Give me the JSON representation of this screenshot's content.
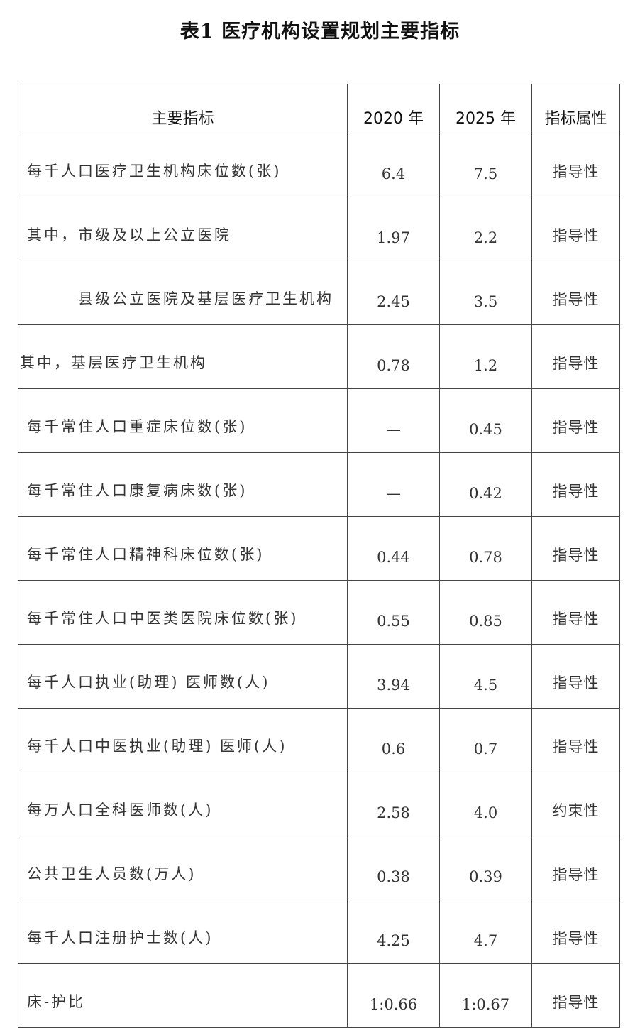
{
  "title": "表1 医疗机构设置规划主要指标",
  "headers": [
    "主要指标",
    "2020 年",
    "2025 年",
    "指标属性"
  ],
  "rows": [
    {
      "indicator": "每千人口医疗卫生机构床位数(张)",
      "y2020": "6.4",
      "y2025": "7.5",
      "attribute": "指导性",
      "indent": "normal"
    },
    {
      "indicator": "其中，市级及以上公立医院",
      "y2020": "1.97",
      "y2025": "2.2",
      "attribute": "指导性",
      "indent": "normal"
    },
    {
      "indicator": "县级公立医院及基层医疗卫生机构",
      "y2020": "2.45",
      "y2025": "3.5",
      "attribute": "指导性",
      "indent": "deep"
    },
    {
      "indicator": "其中，基层医疗卫生机构",
      "y2020": "0.78",
      "y2025": "1.2",
      "attribute": "指导性",
      "indent": "none"
    },
    {
      "indicator": "每千常住人口重症床位数(张)",
      "y2020": "—",
      "y2025": "0.45",
      "attribute": "指导性",
      "indent": "normal"
    },
    {
      "indicator": "每千常住人口康复病床数(张)",
      "y2020": "—",
      "y2025": "0.42",
      "attribute": "指导性",
      "indent": "normal"
    },
    {
      "indicator": "每千常住人口精神科床位数(张)",
      "y2020": "0.44",
      "y2025": "0.78",
      "attribute": "指导性",
      "indent": "normal"
    },
    {
      "indicator": "每千常住人口中医类医院床位数(张)",
      "y2020": "0.55",
      "y2025": "0.85",
      "attribute": "指导性",
      "indent": "normal"
    },
    {
      "indicator": "每千人口执业(助理) 医师数(人)",
      "y2020": "3.94",
      "y2025": "4.5",
      "attribute": "指导性",
      "indent": "normal"
    },
    {
      "indicator": "每千人口中医执业(助理) 医师(人)",
      "y2020": "0.6",
      "y2025": "0.7",
      "attribute": "指导性",
      "indent": "normal"
    },
    {
      "indicator": "每万人口全科医师数(人)",
      "y2020": "2.58",
      "y2025": "4.0",
      "attribute": "约束性",
      "indent": "normal"
    },
    {
      "indicator": "公共卫生人员数(万人)",
      "y2020": "0.38",
      "y2025": "0.39",
      "attribute": "指导性",
      "indent": "normal"
    },
    {
      "indicator": "每千人口注册护士数(人)",
      "y2020": "4.25",
      "y2025": "4.7",
      "attribute": "指导性",
      "indent": "normal"
    },
    {
      "indicator": "床-护比",
      "y2020": "1:0.66",
      "y2025": "1:0.67",
      "attribute": "指导性",
      "indent": "normal"
    }
  ]
}
